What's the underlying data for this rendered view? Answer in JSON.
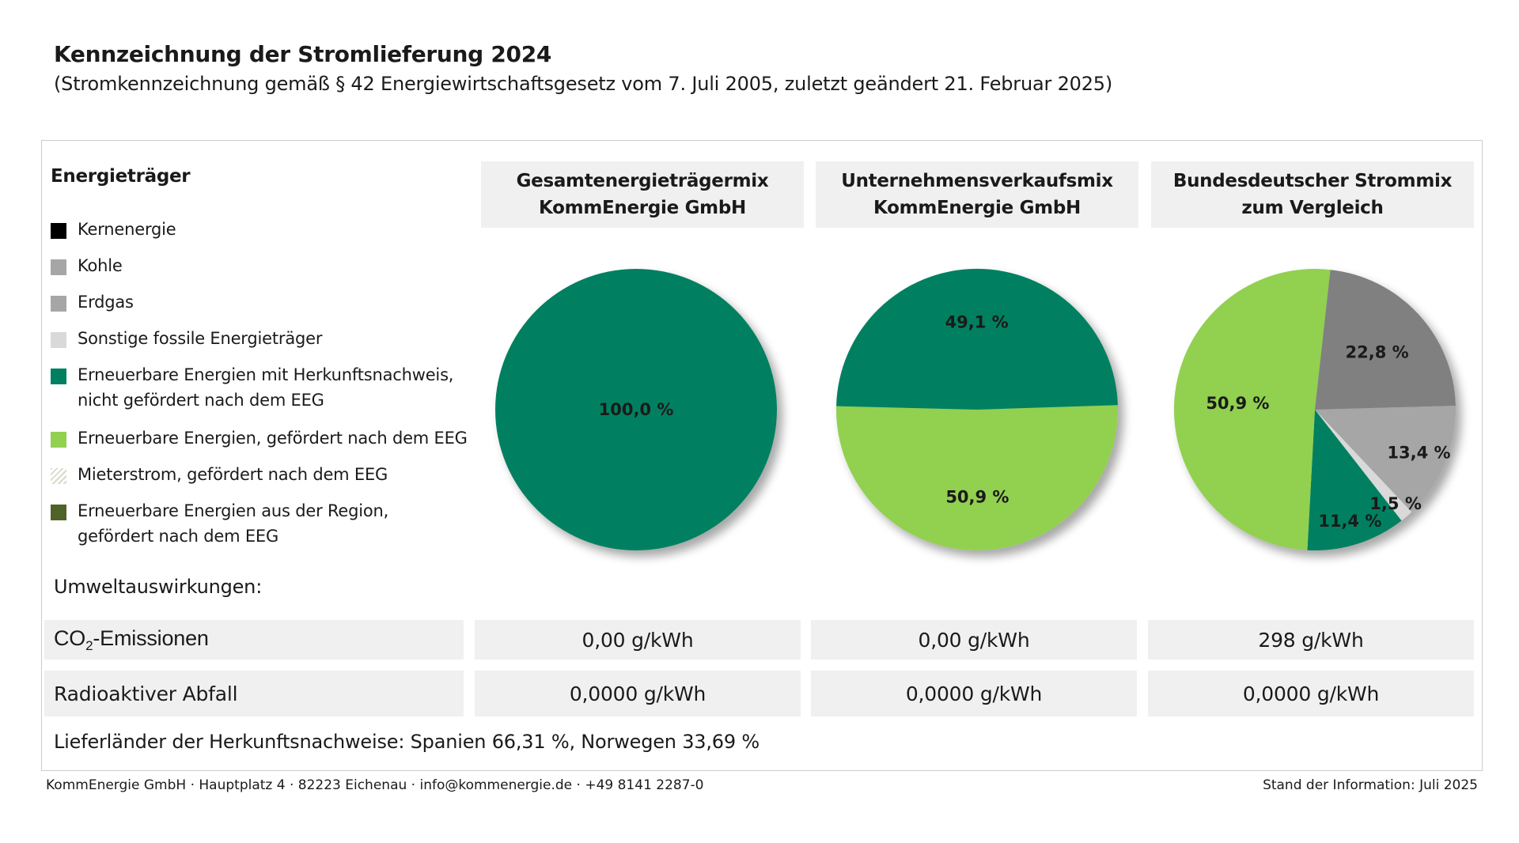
{
  "header": {
    "title": "Kennzeichnung der Stromlieferung 2024",
    "subtitle": "(Stromkennzeichnung gemäß § 42 Energiewirtschaftsgesetz vom 7. Juli 2005, zuletzt geändert 21. Februar 2025)"
  },
  "legend": {
    "title": "Energieträger",
    "items": [
      {
        "label": "Kernenergie",
        "color": "#000000"
      },
      {
        "label": "Kohle",
        "color": "#a6a6a6"
      },
      {
        "label": "Erdgas",
        "color": "#a6a6a6"
      },
      {
        "label": "Sonstige fossile Energieträger",
        "color": "#d9d9d9"
      },
      {
        "label": "Erneuerbare Energien mit Herkunftsnachweis,\nnicht gefördert nach dem EEG",
        "color": "#008060"
      },
      {
        "label": "Erneuerbare Energien, gefördert nach dem EEG",
        "color": "#92d050"
      },
      {
        "label": "Mieterstrom, gefördert nach dem EEG",
        "color": "#f2f2e6"
      },
      {
        "label": "Erneuerbare Energien aus der Region,\ngefördert nach dem EEG",
        "color": "#4f6228"
      }
    ]
  },
  "columns": [
    {
      "heading": "Gesamtenergieträgermix\nKommEnergie GmbH"
    },
    {
      "heading": "Unternehmensverkaufsmix\nKommEnergie GmbH"
    },
    {
      "heading": "Bundesdeutscher Strommix\nzum Vergleich"
    }
  ],
  "chart_data": [
    {
      "type": "pie",
      "title": "Gesamtenergieträgermix KommEnergie GmbH",
      "slices": [
        {
          "category": "Erneuerbare Energien mit Herkunftsnachweis, nicht gefördert nach dem EEG",
          "value": 100.0,
          "label": "100,0 %",
          "color": "#008060"
        }
      ]
    },
    {
      "type": "pie",
      "title": "Unternehmensverkaufsmix KommEnergie GmbH",
      "slices": [
        {
          "category": "Erneuerbare Energien, gefördert nach dem EEG",
          "value": 50.9,
          "label": "50,9 %",
          "color": "#92d050"
        },
        {
          "category": "Erneuerbare Energien mit Herkunftsnachweis, nicht gefördert nach dem EEG",
          "value": 49.1,
          "label": "49,1 %",
          "color": "#008060"
        }
      ]
    },
    {
      "type": "pie",
      "title": "Bundesdeutscher Strommix zum Vergleich",
      "slices": [
        {
          "category": "Erdgas",
          "value": 13.4,
          "label": "13,4 %",
          "color": "#a6a6a6"
        },
        {
          "category": "Sonstige fossile Energieträger",
          "value": 1.5,
          "label": "1,5 %",
          "color": "#d9d9d9"
        },
        {
          "category": "Erneuerbare Energien mit Herkunftsnachweis, nicht gefördert nach dem EEG",
          "value": 11.4,
          "label": "11,4 %",
          "color": "#008060"
        },
        {
          "category": "Erneuerbare Energien, gefördert nach dem EEG",
          "value": 50.9,
          "label": "50,9 %",
          "color": "#92d050"
        },
        {
          "category": "Kohle",
          "value": 22.8,
          "label": "22,8 %",
          "color": "#808080"
        }
      ]
    }
  ],
  "environment": {
    "heading": "Umweltauswirkungen:",
    "co2": {
      "label_prefix": "CO",
      "label_sub": "2",
      "label_suffix": "-Emissionen",
      "values": [
        "0,00 g/kWh",
        "0,00 g/kWh",
        "298 g/kWh"
      ]
    },
    "radioactive": {
      "label": "Radioaktiver Abfall",
      "values": [
        "0,0000 g/kWh",
        "0,0000 g/kWh",
        "0,0000 g/kWh"
      ]
    }
  },
  "origin_countries": "Lieferländer der Herkunftsnachweise: Spanien 66,31 %, Norwegen 33,69 %",
  "footer": {
    "contact": "KommEnergie GmbH · Hauptplatz 4 · 82223 Eichenau · info@kommenergie.de · +49 8141 2287-0",
    "status": "Stand der Information:  Juli 2025"
  }
}
